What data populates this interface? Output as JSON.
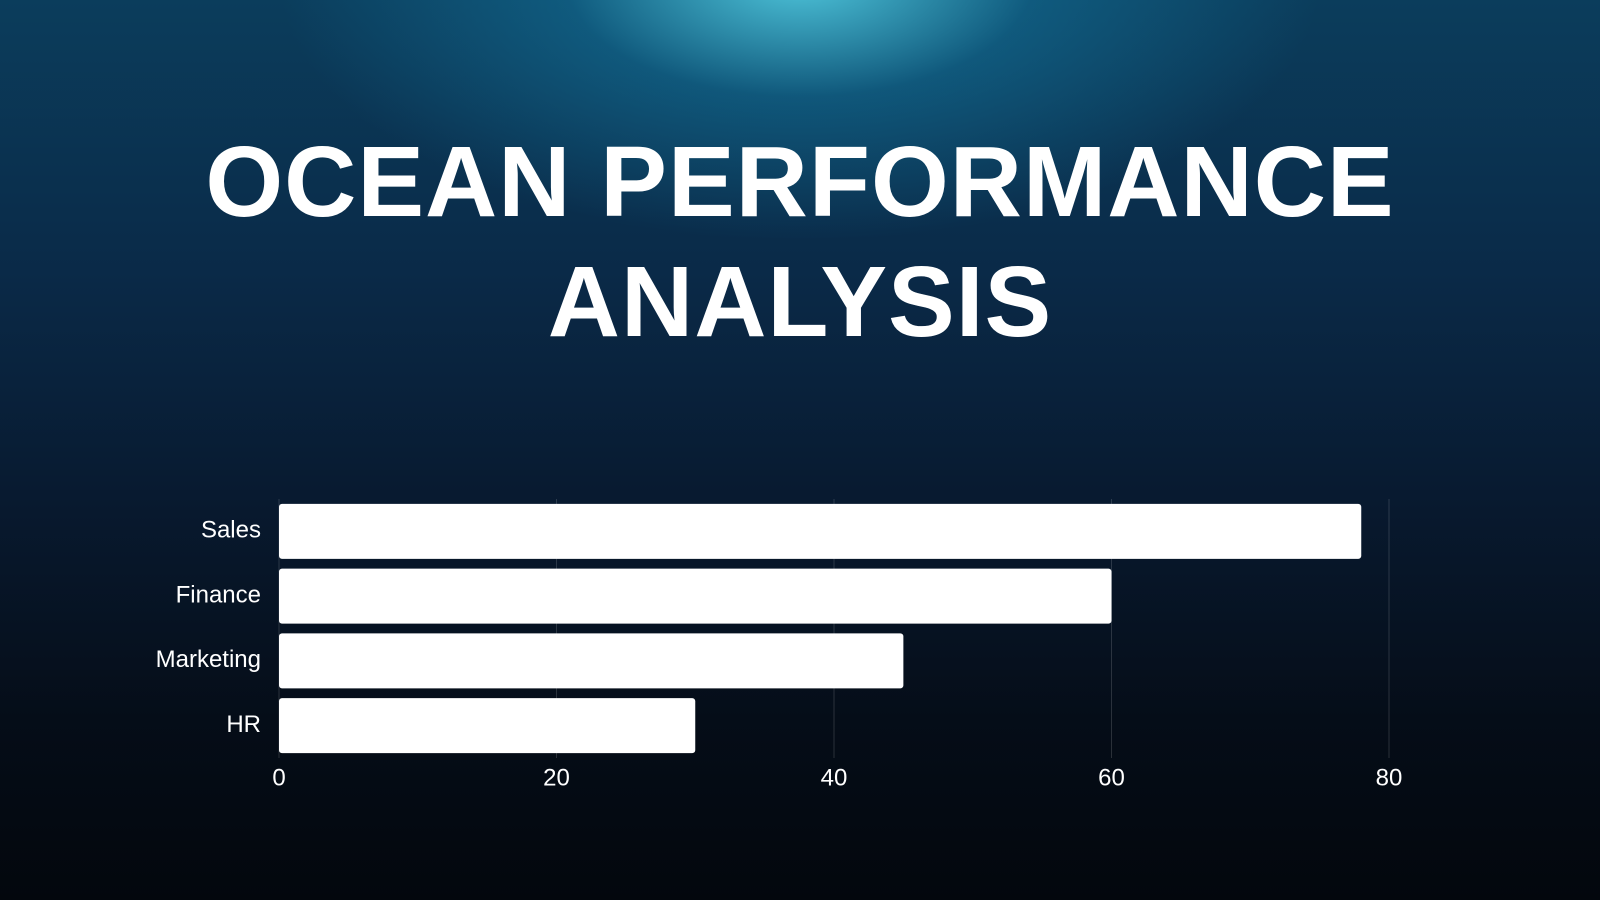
{
  "chart_data": {
    "type": "bar",
    "orientation": "horizontal",
    "title": "OCEAN PERFORMANCE ANALYSIS",
    "categories": [
      "Sales",
      "Finance",
      "Marketing",
      "HR"
    ],
    "values": [
      78,
      60,
      45,
      30
    ],
    "color": "#ffffff",
    "xlim": [
      0,
      80
    ],
    "xticks": [
      0,
      20,
      40,
      60,
      80
    ],
    "grid": true
  }
}
